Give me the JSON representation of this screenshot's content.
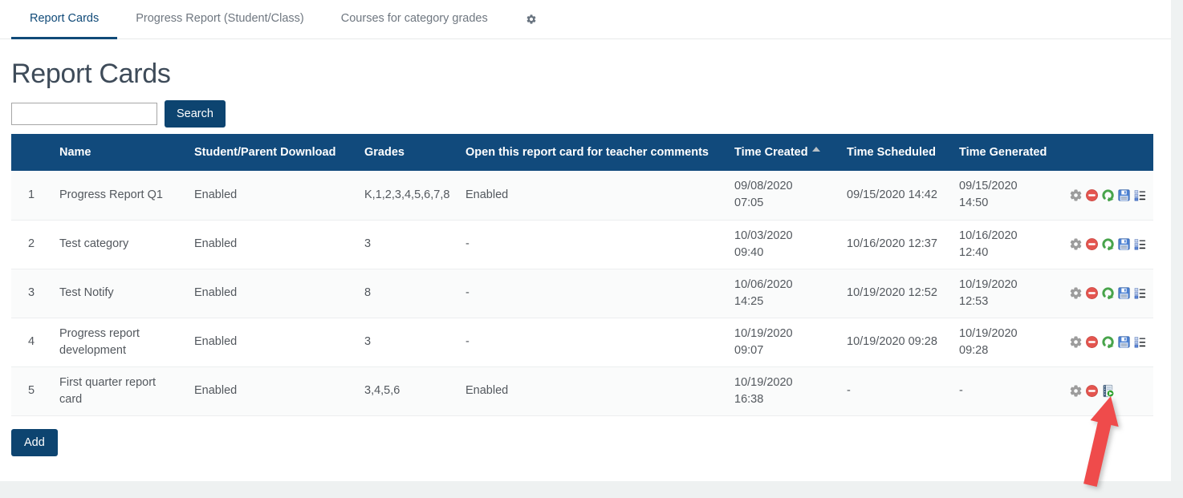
{
  "tabs": [
    {
      "label": "Report Cards",
      "active": true
    },
    {
      "label": "Progress Report (Student/Class)",
      "active": false
    },
    {
      "label": "Courses for category grades",
      "active": false
    }
  ],
  "tab_gear_icon": "gear-icon",
  "page": {
    "title": "Report Cards"
  },
  "search": {
    "value": "",
    "placeholder": "",
    "button_label": "Search"
  },
  "table": {
    "columns": [
      "",
      "Name",
      "Student/Parent Download",
      "Grades",
      "Open this report card for teacher comments",
      "Time Created",
      "Time Scheduled",
      "Time Generated",
      ""
    ],
    "sort": {
      "column": "Time Created",
      "direction": "ascending"
    },
    "rows": [
      {
        "num": "1",
        "name": "Progress Report Q1",
        "student_parent_download": "Enabled",
        "grades": "K,1,2,3,4,5,6,7,8",
        "teacher_comments": "Enabled",
        "time_created": [
          "09/08/2020",
          "07:05"
        ],
        "time_scheduled": "09/15/2020 14:42",
        "time_generated": [
          "09/15/2020",
          "14:50"
        ],
        "actions": [
          "settings",
          "disable",
          "regenerate",
          "save",
          "list"
        ]
      },
      {
        "num": "2",
        "name": "Test category",
        "student_parent_download": "Enabled",
        "grades": "3",
        "teacher_comments": "-",
        "time_created": [
          "10/03/2020",
          "09:40"
        ],
        "time_scheduled": "10/16/2020 12:37",
        "time_generated": [
          "10/16/2020",
          "12:40"
        ],
        "actions": [
          "settings",
          "disable",
          "regenerate",
          "save",
          "list"
        ]
      },
      {
        "num": "3",
        "name": "Test Notify",
        "student_parent_download": "Enabled",
        "grades": "8",
        "teacher_comments": "-",
        "time_created": [
          "10/06/2020",
          "14:25"
        ],
        "time_scheduled": "10/19/2020 12:52",
        "time_generated": [
          "10/19/2020",
          "12:53"
        ],
        "actions": [
          "settings",
          "disable",
          "regenerate",
          "save",
          "list"
        ]
      },
      {
        "num": "4",
        "name": "Progress report development",
        "student_parent_download": "Enabled",
        "grades": "3",
        "teacher_comments": "-",
        "time_created": [
          "10/19/2020",
          "09:07"
        ],
        "time_scheduled": "10/19/2020 09:28",
        "time_generated": [
          "10/19/2020",
          "09:28"
        ],
        "actions": [
          "settings",
          "disable",
          "regenerate",
          "save",
          "list"
        ]
      },
      {
        "num": "5",
        "name": "First quarter report card",
        "student_parent_download": "Enabled",
        "grades": "3,4,5,6",
        "teacher_comments": "Enabled",
        "time_created": [
          "10/19/2020",
          "16:38"
        ],
        "time_scheduled": "-",
        "time_generated": "-",
        "actions": [
          "settings",
          "disable",
          "generate"
        ]
      }
    ]
  },
  "add_button_label": "Add",
  "annotation": {
    "arrow_color": "#ef4b4b",
    "points_to": "generate-icon"
  },
  "colors": {
    "header_bg": "#114a7c",
    "button_bg": "#0d4470",
    "active_tab": "#104a78",
    "title_text": "#3e4b59"
  }
}
